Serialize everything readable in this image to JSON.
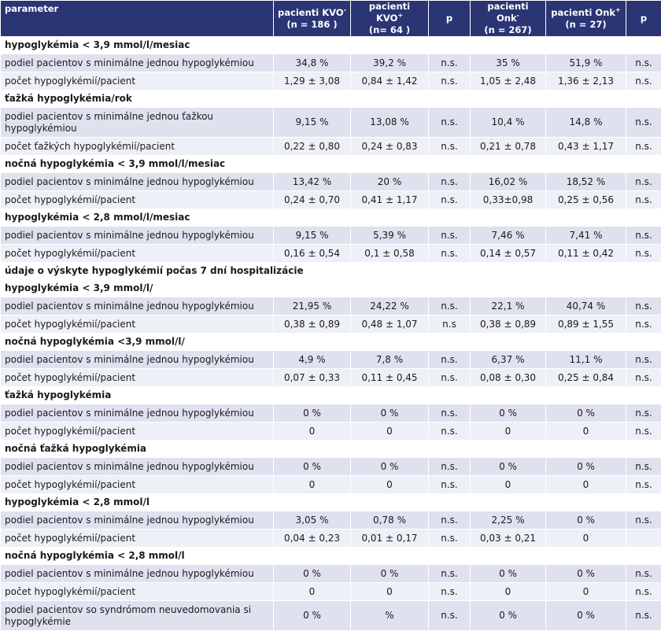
{
  "header": {
    "parameter": "parameter",
    "kvo_minus": "pacienti KVO",
    "kvo_minus_sup": "-",
    "kvo_minus_n": "(n = 186 )",
    "kvo_plus": "pacienti KVO",
    "kvo_plus_sup": "+",
    "kvo_plus_n": "(n= 64 )",
    "p1": "p",
    "onk_minus": "pacienti Onk",
    "onk_minus_sup": "-",
    "onk_minus_n": "(n = 267)",
    "onk_plus": "pacienti Onk",
    "onk_plus_sup": "+",
    "onk_plus_n": "(n = 27)",
    "p2": "p"
  },
  "rows": [
    {
      "type": "section",
      "label": "hypoglykémia < 3,9 mmol/l/mesiac"
    },
    {
      "type": "data",
      "label": "podiel pacientov s minimálne jednou hypoglykémiou",
      "v": [
        "34,8 %",
        "39,2 %",
        "n.s.",
        "35 %",
        "51,9 %",
        "n.s."
      ]
    },
    {
      "type": "data",
      "label": "počet hypoglykémií/pacient",
      "v": [
        "1,29 ± 3,08",
        "0,84 ± 1,42",
        "n.s.",
        "1,05 ± 2,48",
        "1,36 ± 2,13",
        "n.s."
      ]
    },
    {
      "type": "section",
      "label": "ťažká hypoglykémia/rok"
    },
    {
      "type": "data",
      "tall": true,
      "label": "podiel pacientov s minimálne jednou ťažkou hypoglykémiou",
      "v": [
        "9,15 %",
        "13,08 %",
        "n.s.",
        "10,4 %",
        "14,8 %",
        "n.s."
      ]
    },
    {
      "type": "data",
      "label": "počet ťažkých hypoglykémií/pacient",
      "v": [
        "0,22 ± 0,80",
        "0,24 ± 0,83",
        "n.s.",
        "0,21 ± 0,78",
        "0,43 ± 1,17",
        "n.s."
      ]
    },
    {
      "type": "section",
      "label": "nočná hypoglykémia < 3,9 mmol/l/mesiac"
    },
    {
      "type": "data",
      "label": "podiel pacientov s minimálne jednou hypoglykémiou",
      "v": [
        "13,42 %",
        "20 %",
        "n.s.",
        "16,02 %",
        "18,52 %",
        "n.s."
      ]
    },
    {
      "type": "data",
      "label": "počet hypoglykémií/pacient",
      "v": [
        "0,24 ± 0,70",
        "0,41 ± 1,17",
        "n.s.",
        "0,33±0,98",
        "0,25 ± 0,56",
        "n.s."
      ]
    },
    {
      "type": "section",
      "label": "hypoglykémia < 2,8 mmol/l/mesiac"
    },
    {
      "type": "data",
      "label": "podiel pacientov s minimálne jednou hypoglykémiou",
      "v": [
        "9,15 %",
        "5,39 %",
        "n.s.",
        "7,46 %",
        "7,41 %",
        "n.s."
      ]
    },
    {
      "type": "data",
      "label": "počet hypoglykémií/pacient",
      "v": [
        "0,16 ± 0,54",
        "0,1 ± 0,58",
        "n.s.",
        "0,14 ± 0,57",
        "0,11 ± 0,42",
        "n.s."
      ]
    },
    {
      "type": "section",
      "label": "údaje o výskyte hypoglykémií počas 7 dní hospitalizácie"
    },
    {
      "type": "section",
      "label": "hypoglykémia < 3,9 mmol/l/"
    },
    {
      "type": "data",
      "label": "podiel pacientov s minimálne jednou hypoglykémiou",
      "v": [
        "21,95 %",
        "24,22 %",
        "n.s.",
        "22,1 %",
        "40,74 %",
        "n.s."
      ]
    },
    {
      "type": "data",
      "label": "počet hypoglykémií/pacient",
      "v": [
        "0,38 ± 0,89",
        "0,48 ± 1,07",
        "n.s",
        "0,38 ± 0,89",
        "0,89 ± 1,55",
        "n.s."
      ]
    },
    {
      "type": "section",
      "label": "nočná hypoglykémia <3,9 mmol/l/"
    },
    {
      "type": "data",
      "label": "podiel pacientov s minimálne jednou hypoglykémiou",
      "v": [
        "4,9 %",
        "7,8 %",
        "n.s.",
        "6,37 %",
        "11,1 %",
        "n.s."
      ]
    },
    {
      "type": "data",
      "label": "počet hypoglykémií/pacient",
      "v": [
        "0,07 ± 0,33",
        "0,11 ± 0,45",
        "n.s.",
        "0,08 ± 0,30",
        "0,25 ± 0,84",
        "n.s."
      ]
    },
    {
      "type": "section",
      "label": "ťažká hypoglykémia"
    },
    {
      "type": "data",
      "label": "podiel pacientov s minimálne jednou hypoglykémiou",
      "v": [
        "0 %",
        "0 %",
        "n.s.",
        "0 %",
        "0 %",
        "n.s."
      ]
    },
    {
      "type": "data",
      "label": "počet hypoglykémií/pacient",
      "v": [
        "0",
        "0",
        "n.s.",
        "0",
        "0",
        "n.s."
      ]
    },
    {
      "type": "section",
      "label": "nočná ťažká hypoglykémia"
    },
    {
      "type": "data",
      "label": "podiel pacientov s minimálne jednou hypoglykémiou",
      "v": [
        "0 %",
        "0 %",
        "n.s.",
        "0 %",
        "0 %",
        "n.s."
      ]
    },
    {
      "type": "data",
      "label": "počet hypoglykémií/pacient",
      "v": [
        "0",
        "0",
        "n.s.",
        "0",
        "0",
        "n.s."
      ]
    },
    {
      "type": "section",
      "label": "hypoglykémia < 2,8 mmol/l"
    },
    {
      "type": "data",
      "label": "podiel pacientov s minimálne jednou hypoglykémiou",
      "v": [
        "3,05 %",
        "0,78 %",
        "n.s.",
        "2,25 %",
        "0 %",
        "n.s."
      ]
    },
    {
      "type": "data",
      "label": "počet hypoglykémií/pacient",
      "v": [
        "0,04 ± 0,23",
        "0,01 ± 0,17",
        "n.s.",
        "0,03 ± 0,21",
        "0",
        ""
      ]
    },
    {
      "type": "section",
      "label": "nočná hypoglykémia < 2,8 mmol/l"
    },
    {
      "type": "data",
      "label": "podiel pacientov s minimálne jednou hypoglykémiou",
      "v": [
        "0 %",
        "0 %",
        "n.s.",
        "0 %",
        "0 %",
        "n.s."
      ]
    },
    {
      "type": "data",
      "label": "počet hypoglykémií/pacient",
      "v": [
        "0",
        "0",
        "n.s.",
        "0",
        "0",
        "n.s."
      ]
    },
    {
      "type": "data",
      "tall": true,
      "label": "podiel pacientov so syndrómom neuvedomovania si hypoglykémie",
      "v": [
        "0 %",
        "%",
        "n.s.",
        "0 %",
        "0 %",
        "n.s."
      ]
    }
  ]
}
